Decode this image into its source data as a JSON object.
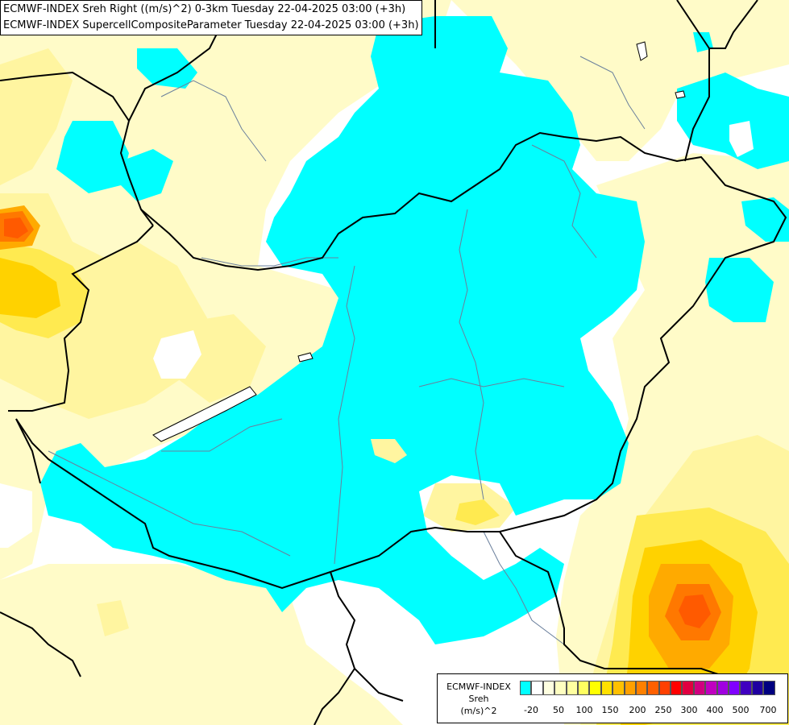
{
  "titles": {
    "line1": "ECMWF-INDEX Sreh Right ((m/s)^2) 0-3km Tuesday 22-04-2025 03:00 (+3h)",
    "line2": "ECMWF-INDEX SupercellCompositeParameter Tuesday 22-04-2025 03:00 (+3h)"
  },
  "legend": {
    "line1": "ECMWF-INDEX",
    "line2": "Sreh",
    "line3": "(m/s)^2",
    "colors": [
      "#00ffff",
      "#ffffff",
      "#ffffe0",
      "#ffffc0",
      "#ffffa0",
      "#ffff60",
      "#ffff00",
      "#ffe000",
      "#ffc000",
      "#ffa000",
      "#ff8000",
      "#ff6000",
      "#ff4000",
      "#ff0000",
      "#e00040",
      "#d00080",
      "#c000c0",
      "#a000e0",
      "#8000ff",
      "#4000c0",
      "#2000a0",
      "#000080"
    ],
    "ticks": [
      "-20",
      "50",
      "100",
      "150",
      "200",
      "250",
      "300",
      "400",
      "500",
      "700"
    ]
  },
  "map": {
    "colors": {
      "cyan": "#00ffff",
      "pale_yellow": "#fffbc8",
      "light_yellow": "#fff5a0",
      "yellow": "#ffea50",
      "gold": "#ffd200",
      "orange": "#ffaa00",
      "dark_orange": "#ff7800",
      "red_orange": "#ff5a00",
      "border": "#000000",
      "river": "#6a7f9c"
    }
  }
}
